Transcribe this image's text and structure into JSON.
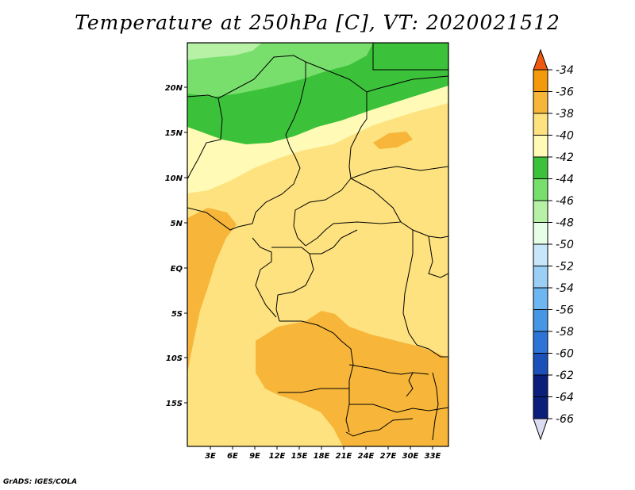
{
  "title": "Temperature at 250hPa [C], VT: 2020021512",
  "credit": "GrADS: IGES/COLA",
  "map": {
    "lat_labels": [
      "20N",
      "15N",
      "10N",
      "5N",
      "EQ",
      "5S",
      "10S",
      "15S"
    ],
    "lon_labels": [
      "3E",
      "6E",
      "9E",
      "12E",
      "15E",
      "18E",
      "21E",
      "24E",
      "27E",
      "30E",
      "33E"
    ]
  },
  "colorbar": {
    "labels": [
      "-34",
      "-36",
      "-38",
      "-40",
      "-42",
      "-44",
      "-46",
      "-48",
      "-50",
      "-52",
      "-54",
      "-56",
      "-58",
      "-60",
      "-62",
      "-64",
      "-66"
    ],
    "colors": [
      "#f05a10",
      "#f39a0c",
      "#f7b63a",
      "#fde27f",
      "#fffab6",
      "#3cc23a",
      "#78df6c",
      "#b6f1a6",
      "#e6fde6",
      "#c8e6fa",
      "#9bcff6",
      "#6db6f1",
      "#4696e6",
      "#2d74d6",
      "#1a50b8",
      "#0a1e7a",
      "#dcdcf2"
    ]
  }
}
